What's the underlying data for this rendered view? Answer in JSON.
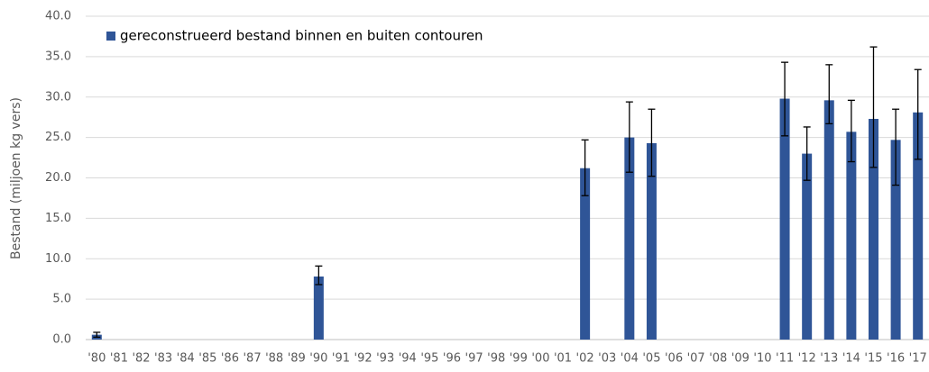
{
  "chart_data": {
    "type": "bar",
    "y_label": "Bestand (miljoen kg vers)",
    "categories": [
      "'80",
      "'81",
      "'82",
      "'83",
      "'84",
      "'85",
      "'86",
      "'87",
      "'88",
      "'89",
      "'90",
      "'91",
      "'92",
      "'93",
      "'94",
      "'95",
      "'96",
      "'97",
      "'98",
      "'99",
      "'00",
      "'01",
      "'02",
      "'03",
      "'04",
      "'05",
      "'06",
      "'07",
      "'08",
      "'09",
      "'10",
      "'11",
      "'12",
      "'13",
      "'14",
      "'15",
      "'16",
      "'17"
    ],
    "series": [
      {
        "name": "gereconstrueerd bestand binnen en buiten contouren",
        "color": "#2f5597",
        "values": [
          0.6,
          null,
          null,
          null,
          null,
          null,
          null,
          null,
          null,
          null,
          7.8,
          null,
          null,
          null,
          null,
          null,
          null,
          null,
          null,
          null,
          null,
          null,
          21.2,
          null,
          25.0,
          24.3,
          null,
          null,
          null,
          null,
          null,
          29.8,
          23.0,
          29.6,
          25.7,
          27.3,
          24.7,
          28.1
        ],
        "errors_minus": [
          0.3,
          null,
          null,
          null,
          null,
          null,
          null,
          null,
          null,
          null,
          1.0,
          null,
          null,
          null,
          null,
          null,
          null,
          null,
          null,
          null,
          null,
          null,
          3.4,
          null,
          4.3,
          4.1,
          null,
          null,
          null,
          null,
          null,
          4.6,
          3.3,
          2.9,
          3.7,
          6.0,
          5.6,
          5.8
        ],
        "errors_plus": [
          0.3,
          null,
          null,
          null,
          null,
          null,
          null,
          null,
          null,
          null,
          1.3,
          null,
          null,
          null,
          null,
          null,
          null,
          null,
          null,
          null,
          null,
          null,
          3.5,
          null,
          4.4,
          4.2,
          null,
          null,
          null,
          null,
          null,
          4.5,
          3.3,
          4.4,
          3.9,
          8.9,
          3.8,
          5.3
        ]
      }
    ],
    "ylim": [
      0,
      40
    ],
    "yticks": [
      {
        "value": 0,
        "label": "0.0"
      },
      {
        "value": 5,
        "label": "5.0"
      },
      {
        "value": 10,
        "label": "10.0"
      },
      {
        "value": 15,
        "label": "15.0"
      },
      {
        "value": 20,
        "label": "20.0"
      },
      {
        "value": 25,
        "label": "25.0"
      },
      {
        "value": 30,
        "label": "30.0"
      },
      {
        "value": 35,
        "label": "35.0"
      },
      {
        "value": 40,
        "label": "40.0"
      }
    ],
    "grid": true,
    "legend": "top-left"
  }
}
